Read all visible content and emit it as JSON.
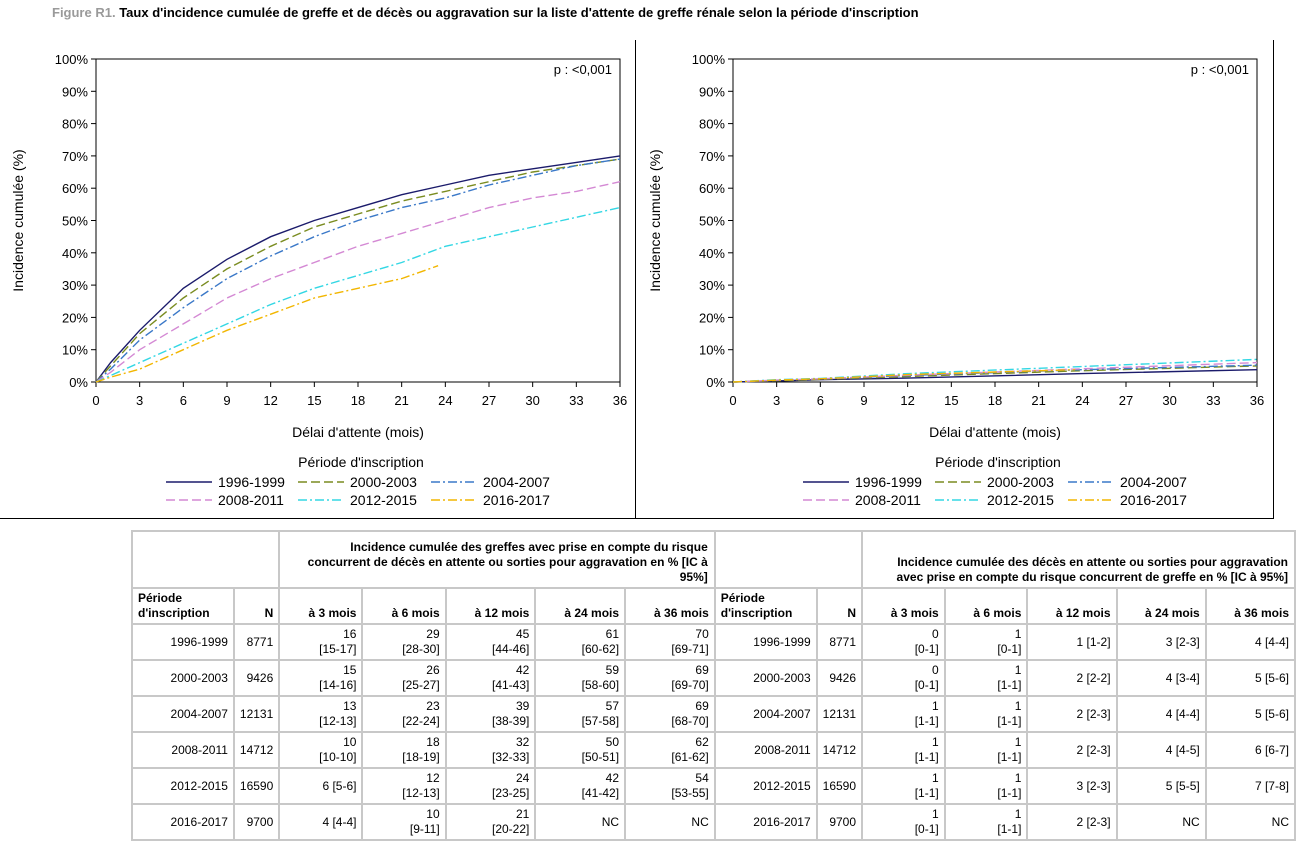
{
  "figure": {
    "label": "Figure R1.",
    "title": "Taux d'incidence cumulée de greffe et de décès ou aggravation sur la liste d'attente de greffe rénale selon la période d'inscription"
  },
  "colors": {
    "1996-1999": "#1b1b6b",
    "2000-2003": "#7a8c20",
    "2004-2007": "#3a78c8",
    "2008-2011": "#d489d4",
    "2012-2015": "#33d7e4",
    "2016-2017": "#f2b600"
  },
  "chart_data": [
    {
      "type": "line",
      "ylabel": "Incidence cumulée (%)",
      "xlabel": "Délai d'attente (mois)",
      "pvalue": "p : <0,001",
      "ylim": [
        0,
        100
      ],
      "xlim": [
        0,
        36
      ],
      "yticks": [
        "0%",
        "10%",
        "20%",
        "30%",
        "40%",
        "50%",
        "60%",
        "70%",
        "80%",
        "90%",
        "100%"
      ],
      "xticks": [
        "0",
        "3",
        "6",
        "9",
        "12",
        "15",
        "18",
        "21",
        "24",
        "27",
        "30",
        "33",
        "36"
      ],
      "legend_title": "Période d'inscription",
      "legend": [
        "1996-1999",
        "2000-2003",
        "2004-2007",
        "2008-2011",
        "2012-2015",
        "2016-2017"
      ],
      "series": [
        {
          "name": "1996-1999",
          "dash": "solid",
          "x": [
            0,
            1,
            3,
            6,
            9,
            12,
            15,
            18,
            21,
            24,
            27,
            30,
            33,
            36
          ],
          "values": [
            0,
            6,
            16,
            29,
            38,
            45,
            50,
            54,
            58,
            61,
            64,
            66,
            68,
            70
          ]
        },
        {
          "name": "2000-2003",
          "dash": "long",
          "x": [
            0,
            1,
            3,
            6,
            9,
            12,
            15,
            18,
            21,
            24,
            27,
            30,
            33,
            36
          ],
          "values": [
            0,
            5,
            15,
            26,
            35,
            42,
            48,
            52,
            56,
            59,
            62,
            65,
            67,
            69
          ]
        },
        {
          "name": "2004-2007",
          "dash": "dashdot",
          "x": [
            0,
            1,
            3,
            6,
            9,
            12,
            15,
            18,
            21,
            24,
            27,
            30,
            33,
            36
          ],
          "values": [
            0,
            4,
            13,
            23,
            32,
            39,
            45,
            50,
            54,
            57,
            61,
            64,
            67,
            69
          ]
        },
        {
          "name": "2008-2011",
          "dash": "long",
          "x": [
            0,
            1,
            3,
            6,
            9,
            12,
            15,
            18,
            21,
            24,
            27,
            30,
            33,
            36
          ],
          "values": [
            0,
            3,
            10,
            18,
            26,
            32,
            37,
            42,
            46,
            50,
            54,
            57,
            59,
            62
          ]
        },
        {
          "name": "2012-2015",
          "dash": "dashdot",
          "x": [
            0,
            1,
            3,
            6,
            9,
            12,
            15,
            18,
            21,
            24,
            27,
            30,
            33,
            36
          ],
          "values": [
            0,
            2,
            6,
            12,
            18,
            24,
            29,
            33,
            37,
            42,
            45,
            48,
            51,
            54
          ]
        },
        {
          "name": "2016-2017",
          "dash": "dashdot",
          "x": [
            0,
            1,
            3,
            6,
            9,
            12,
            15,
            18,
            21,
            23.5
          ],
          "values": [
            0,
            1.5,
            4,
            10,
            16,
            21,
            26,
            29,
            32,
            36
          ]
        }
      ]
    },
    {
      "type": "line",
      "ylabel": "Incidence cumulée (%)",
      "xlabel": "Délai d'attente (mois)",
      "pvalue": "p : <0,001",
      "ylim": [
        0,
        100
      ],
      "xlim": [
        0,
        36
      ],
      "yticks": [
        "0%",
        "10%",
        "20%",
        "30%",
        "40%",
        "50%",
        "60%",
        "70%",
        "80%",
        "90%",
        "100%"
      ],
      "xticks": [
        "0",
        "3",
        "6",
        "9",
        "12",
        "15",
        "18",
        "21",
        "24",
        "27",
        "30",
        "33",
        "36"
      ],
      "legend_title": "Période d'inscription",
      "legend": [
        "1996-1999",
        "2000-2003",
        "2004-2007",
        "2008-2011",
        "2012-2015",
        "2016-2017"
      ],
      "series": [
        {
          "name": "1996-1999",
          "dash": "solid",
          "x": [
            0,
            3,
            6,
            12,
            24,
            36
          ],
          "values": [
            0,
            0.3,
            0.7,
            1.2,
            2.6,
            3.8
          ]
        },
        {
          "name": "2000-2003",
          "dash": "long",
          "x": [
            0,
            3,
            6,
            12,
            24,
            36
          ],
          "values": [
            0,
            0.4,
            0.8,
            1.7,
            3.5,
            5
          ]
        },
        {
          "name": "2004-2007",
          "dash": "dashdot",
          "x": [
            0,
            3,
            6,
            12,
            24,
            36
          ],
          "values": [
            0,
            0.6,
            1,
            2,
            3.8,
            5.2
          ]
        },
        {
          "name": "2008-2011",
          "dash": "long",
          "x": [
            0,
            3,
            6,
            12,
            24,
            36
          ],
          "values": [
            0,
            0.6,
            1,
            2.1,
            4.1,
            6
          ]
        },
        {
          "name": "2012-2015",
          "dash": "dashdot",
          "x": [
            0,
            3,
            6,
            12,
            24,
            36
          ],
          "values": [
            0,
            0.7,
            1.1,
            2.6,
            4.8,
            7
          ]
        },
        {
          "name": "2016-2017",
          "dash": "dashdot",
          "x": [
            0,
            3,
            6,
            12,
            23.5
          ],
          "values": [
            0,
            0.6,
            1,
            2.3,
            3.8
          ]
        }
      ]
    }
  ],
  "table": {
    "group_left": "Incidence cumulée des greffes avec prise en compte du risque concurrent de décès en attente ou sorties pour aggravation en % [IC à 95%]",
    "group_right": "Incidence cumulée des décès en attente ou sorties pour aggravation avec prise en compte du risque concurrent de greffe en % [IC à 95%]",
    "col_periode": "Période d'inscription",
    "col_n": "N",
    "col_times": [
      "à 3 mois",
      "à 6 mois",
      "à 12 mois",
      "à 24 mois",
      "à 36 mois"
    ],
    "rows": [
      {
        "periode": "1996-1999",
        "n": "8771",
        "greffe": [
          [
            "16",
            "[15-17]"
          ],
          [
            "29",
            "[28-30]"
          ],
          [
            "45",
            "[44-46]"
          ],
          [
            "61",
            "[60-62]"
          ],
          [
            "70",
            "[69-71]"
          ]
        ],
        "deces": [
          [
            "0",
            "[0-1]"
          ],
          [
            "1",
            "[0-1]"
          ],
          [
            "1 [1-2]",
            ""
          ],
          [
            "3 [2-3]",
            ""
          ],
          [
            "4 [4-4]",
            ""
          ]
        ]
      },
      {
        "periode": "2000-2003",
        "n": "9426",
        "greffe": [
          [
            "15",
            "[14-16]"
          ],
          [
            "26",
            "[25-27]"
          ],
          [
            "42",
            "[41-43]"
          ],
          [
            "59",
            "[58-60]"
          ],
          [
            "69",
            "[69-70]"
          ]
        ],
        "deces": [
          [
            "0",
            "[0-1]"
          ],
          [
            "1",
            "[1-1]"
          ],
          [
            "2 [2-2]",
            ""
          ],
          [
            "4 [3-4]",
            ""
          ],
          [
            "5 [5-6]",
            ""
          ]
        ]
      },
      {
        "periode": "2004-2007",
        "n": "12131",
        "greffe": [
          [
            "13",
            "[12-13]"
          ],
          [
            "23",
            "[22-24]"
          ],
          [
            "39",
            "[38-39]"
          ],
          [
            "57",
            "[57-58]"
          ],
          [
            "69",
            "[68-70]"
          ]
        ],
        "deces": [
          [
            "1",
            "[1-1]"
          ],
          [
            "1",
            "[1-1]"
          ],
          [
            "2 [2-3]",
            ""
          ],
          [
            "4 [4-4]",
            ""
          ],
          [
            "5 [5-6]",
            ""
          ]
        ]
      },
      {
        "periode": "2008-2011",
        "n": "14712",
        "greffe": [
          [
            "10",
            "[10-10]"
          ],
          [
            "18",
            "[18-19]"
          ],
          [
            "32",
            "[32-33]"
          ],
          [
            "50",
            "[50-51]"
          ],
          [
            "62",
            "[61-62]"
          ]
        ],
        "deces": [
          [
            "1",
            "[1-1]"
          ],
          [
            "1",
            "[1-1]"
          ],
          [
            "2 [2-3]",
            ""
          ],
          [
            "4 [4-5]",
            ""
          ],
          [
            "6 [6-7]",
            ""
          ]
        ]
      },
      {
        "periode": "2012-2015",
        "n": "16590",
        "greffe": [
          [
            "6 [5-6]",
            ""
          ],
          [
            "12",
            "[12-13]"
          ],
          [
            "24",
            "[23-25]"
          ],
          [
            "42",
            "[41-42]"
          ],
          [
            "54",
            "[53-55]"
          ]
        ],
        "deces": [
          [
            "1",
            "[1-1]"
          ],
          [
            "1",
            "[1-1]"
          ],
          [
            "3 [2-3]",
            ""
          ],
          [
            "5 [5-5]",
            ""
          ],
          [
            "7 [7-8]",
            ""
          ]
        ]
      },
      {
        "periode": "2016-2017",
        "n": "9700",
        "greffe": [
          [
            "4 [4-4]",
            ""
          ],
          [
            "10",
            "[9-11]"
          ],
          [
            "21",
            "[20-22]"
          ],
          [
            "NC",
            ""
          ],
          [
            "NC",
            ""
          ]
        ],
        "deces": [
          [
            "1",
            "[0-1]"
          ],
          [
            "1",
            "[1-1]"
          ],
          [
            "2 [2-3]",
            ""
          ],
          [
            "NC",
            ""
          ],
          [
            "NC",
            ""
          ]
        ]
      }
    ]
  }
}
